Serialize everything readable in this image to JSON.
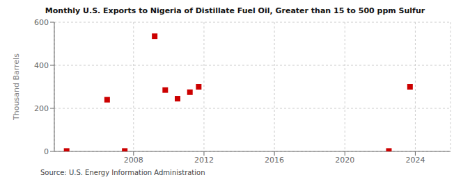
{
  "chart_data": {
    "type": "scatter",
    "title": "Monthly U.S. Exports to Nigeria of Distillate Fuel Oil, Greater than 15 to 500 ppm Sulfur",
    "ylabel": "Thousand Barrels",
    "source": "Source: U.S. Energy Information Administration",
    "x": [
      2004.2,
      2006.5,
      2007.5,
      2009.2,
      2009.8,
      2010.5,
      2011.2,
      2011.7,
      2022.5,
      2023.7
    ],
    "values": [
      2,
      240,
      2,
      535,
      285,
      245,
      275,
      300,
      2,
      300
    ],
    "color": "#cc0000",
    "marker": "square",
    "xlim": [
      2003.5,
      2026
    ],
    "xticks": [
      2008,
      2012,
      2016,
      2020,
      2024
    ],
    "ylim": [
      0,
      600
    ],
    "yticks": [
      0,
      200,
      400,
      600
    ],
    "grid": true
  }
}
